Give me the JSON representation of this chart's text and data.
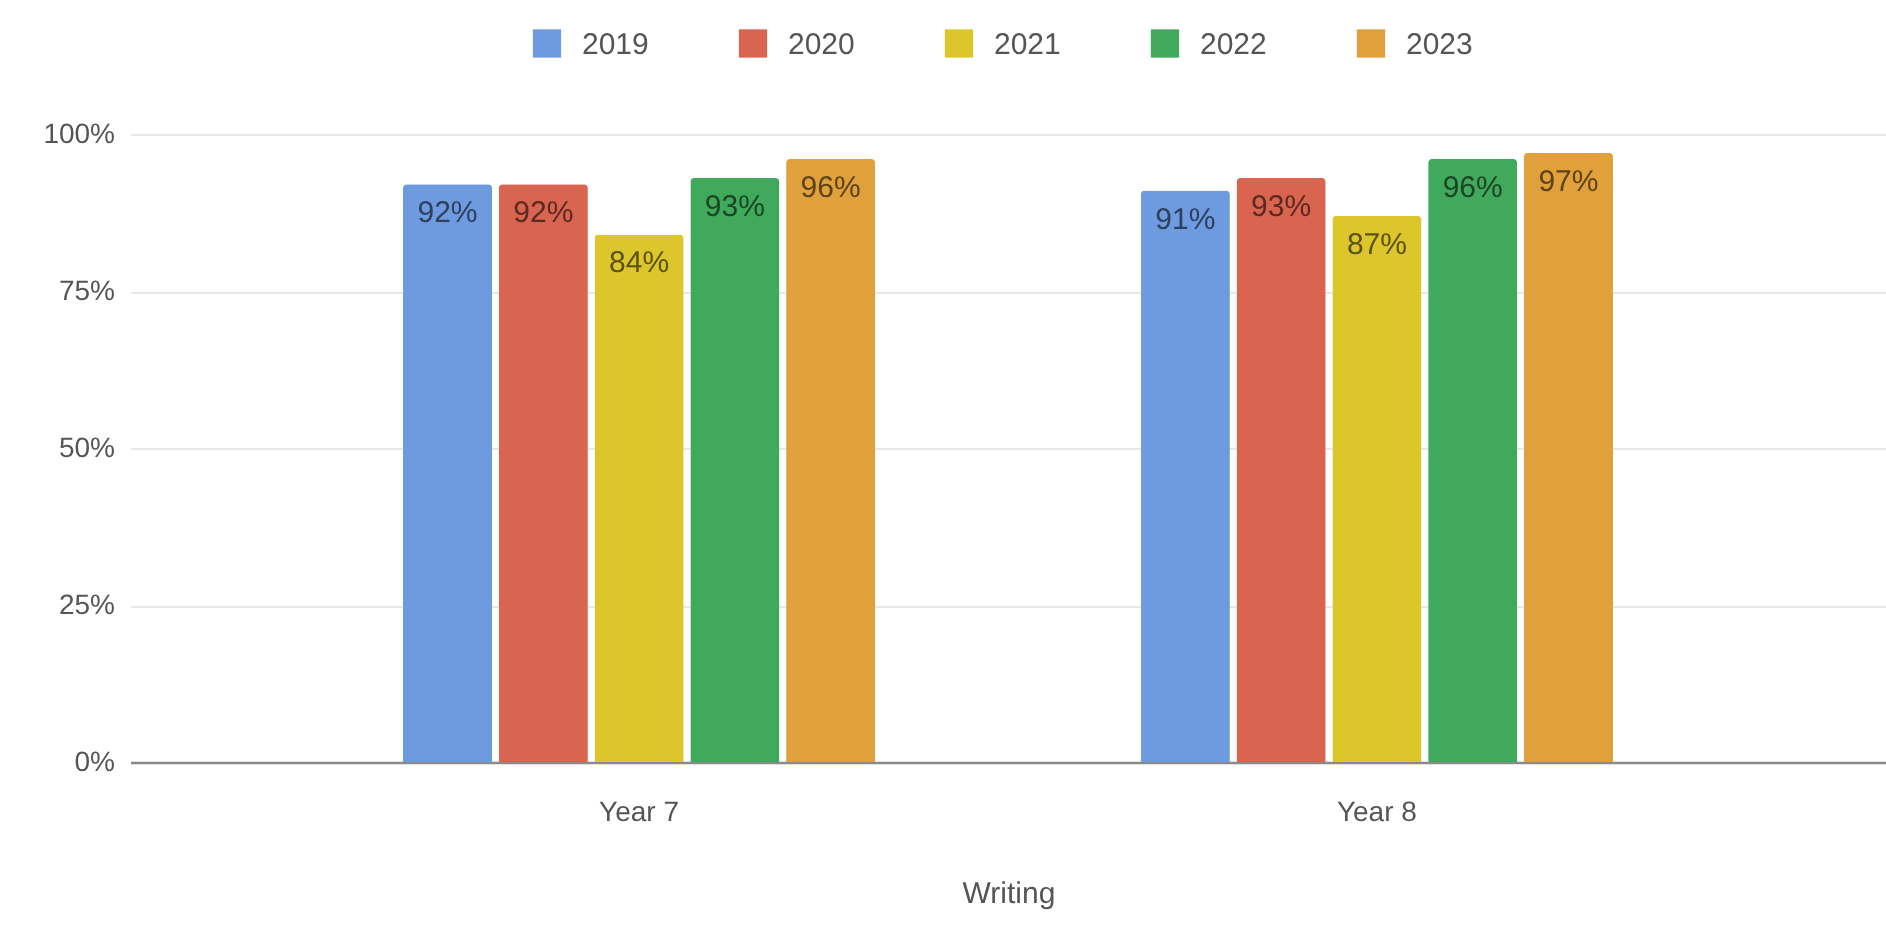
{
  "chart_data": {
    "type": "bar",
    "xlabel": "Writing",
    "categories": [
      "Year 7",
      "Year 8"
    ],
    "series": [
      {
        "name": "2019",
        "color": "#6e9ae0",
        "values": [
          92,
          91
        ],
        "value_labels": [
          "92%",
          "91%"
        ]
      },
      {
        "name": "2020",
        "color": "#d9644f",
        "values": [
          92,
          93
        ],
        "value_labels": [
          "92%",
          "93%"
        ]
      },
      {
        "name": "2021",
        "color": "#dcc62c",
        "values": [
          84,
          87
        ],
        "value_labels": [
          "84%",
          "87%"
        ]
      },
      {
        "name": "2022",
        "color": "#40a95c",
        "values": [
          93,
          96
        ],
        "value_labels": [
          "93%",
          "96%"
        ]
      },
      {
        "name": "2023",
        "color": "#e0a03c",
        "values": [
          96,
          97
        ],
        "value_labels": [
          "96%",
          "97%"
        ]
      }
    ],
    "ylim": [
      0,
      100
    ],
    "yticks": [
      {
        "value": 0,
        "label": "0%"
      },
      {
        "value": 25,
        "label": "25%"
      },
      {
        "value": 50,
        "label": "50%"
      },
      {
        "value": 75,
        "label": "75%"
      },
      {
        "value": 100,
        "label": "100%"
      }
    ],
    "grid": "y",
    "legend": "top"
  }
}
